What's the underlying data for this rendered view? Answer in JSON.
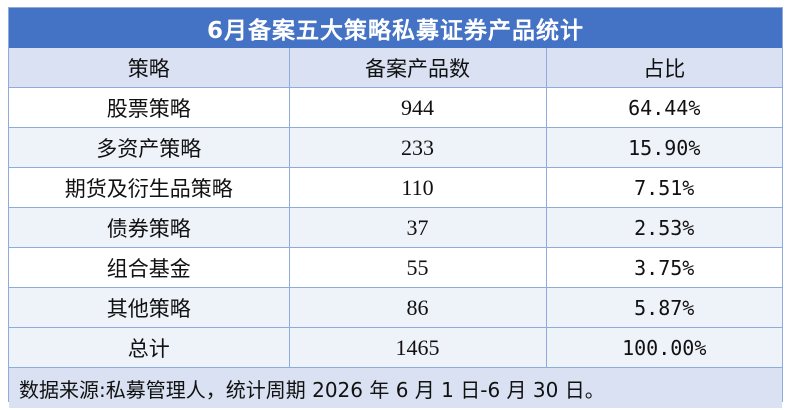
{
  "title": "6月备案五大策略私募证券产品统计",
  "columns": [
    "策略",
    "备案产品数",
    "占比"
  ],
  "rows": [
    {
      "strategy": "股票策略",
      "count": "944",
      "share": "64.44%"
    },
    {
      "strategy": "多资产策略",
      "count": "233",
      "share": "15.90%"
    },
    {
      "strategy": "期货及衍生品策略",
      "count": "110",
      "share": "7.51%"
    },
    {
      "strategy": "债券策略",
      "count": "37",
      "share": "2.53%"
    },
    {
      "strategy": "组合基金",
      "count": "55",
      "share": "3.75%"
    },
    {
      "strategy": "其他策略",
      "count": "86",
      "share": "5.87%"
    }
  ],
  "total": {
    "label": "总计",
    "count": "1465",
    "share": "100.00%"
  },
  "footnote": "数据来源:私募管理人，统计周期 2026 年 6 月 1 日-6 月 30 日。",
  "colors": {
    "title_bg": "#4472c4",
    "header_bg": "#d9e1f2",
    "stripe_bg": "#eef2f9",
    "border": "#8faadc"
  }
}
